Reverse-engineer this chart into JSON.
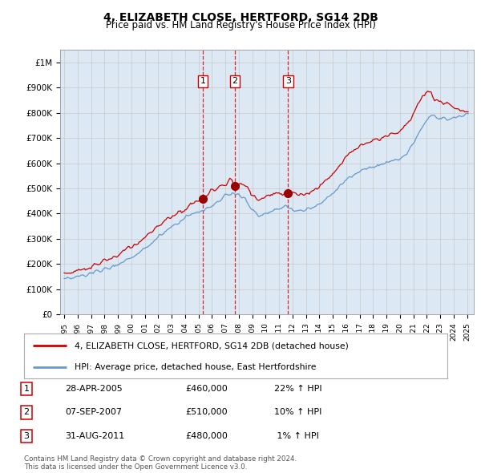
{
  "title": "4, ELIZABETH CLOSE, HERTFORD, SG14 2DB",
  "subtitle": "Price paid vs. HM Land Registry's House Price Index (HPI)",
  "background_color": "#dce9f5",
  "legend_label_red": "4, ELIZABETH CLOSE, HERTFORD, SG14 2DB (detached house)",
  "legend_label_blue": "HPI: Average price, detached house, East Hertfordshire",
  "transactions": [
    {
      "num": 1,
      "date": "28-APR-2005",
      "price": "£460,000",
      "pct": "22% ↑ HPI",
      "year": 2005.32,
      "price_val": 460000
    },
    {
      "num": 2,
      "date": "07-SEP-2007",
      "price": "£510,000",
      "pct": "10% ↑ HPI",
      "year": 2007.72,
      "price_val": 510000
    },
    {
      "num": 3,
      "date": "31-AUG-2011",
      "price": "£480,000",
      "pct": "  1% ↑ HPI",
      "year": 2011.67,
      "price_val": 480000
    }
  ],
  "footer": "Contains HM Land Registry data © Crown copyright and database right 2024.\nThis data is licensed under the Open Government Licence v3.0.",
  "red_color": "#cc0000",
  "blue_color": "#6699cc",
  "ylim": [
    0,
    1050000
  ],
  "yticks": [
    0,
    100000,
    200000,
    300000,
    400000,
    500000,
    600000,
    700000,
    800000,
    900000,
    1000000
  ],
  "ytick_labels": [
    "£0",
    "£100K",
    "£200K",
    "£300K",
    "£400K",
    "£500K",
    "£600K",
    "£700K",
    "£800K",
    "£900K",
    "£1M"
  ],
  "xlim": [
    1994.7,
    2025.5
  ],
  "xtick_years": [
    1995,
    1996,
    1997,
    1998,
    1999,
    2000,
    2001,
    2002,
    2003,
    2004,
    2005,
    2006,
    2007,
    2008,
    2009,
    2010,
    2011,
    2012,
    2013,
    2014,
    2015,
    2016,
    2017,
    2018,
    2019,
    2020,
    2021,
    2022,
    2023,
    2024,
    2025
  ]
}
